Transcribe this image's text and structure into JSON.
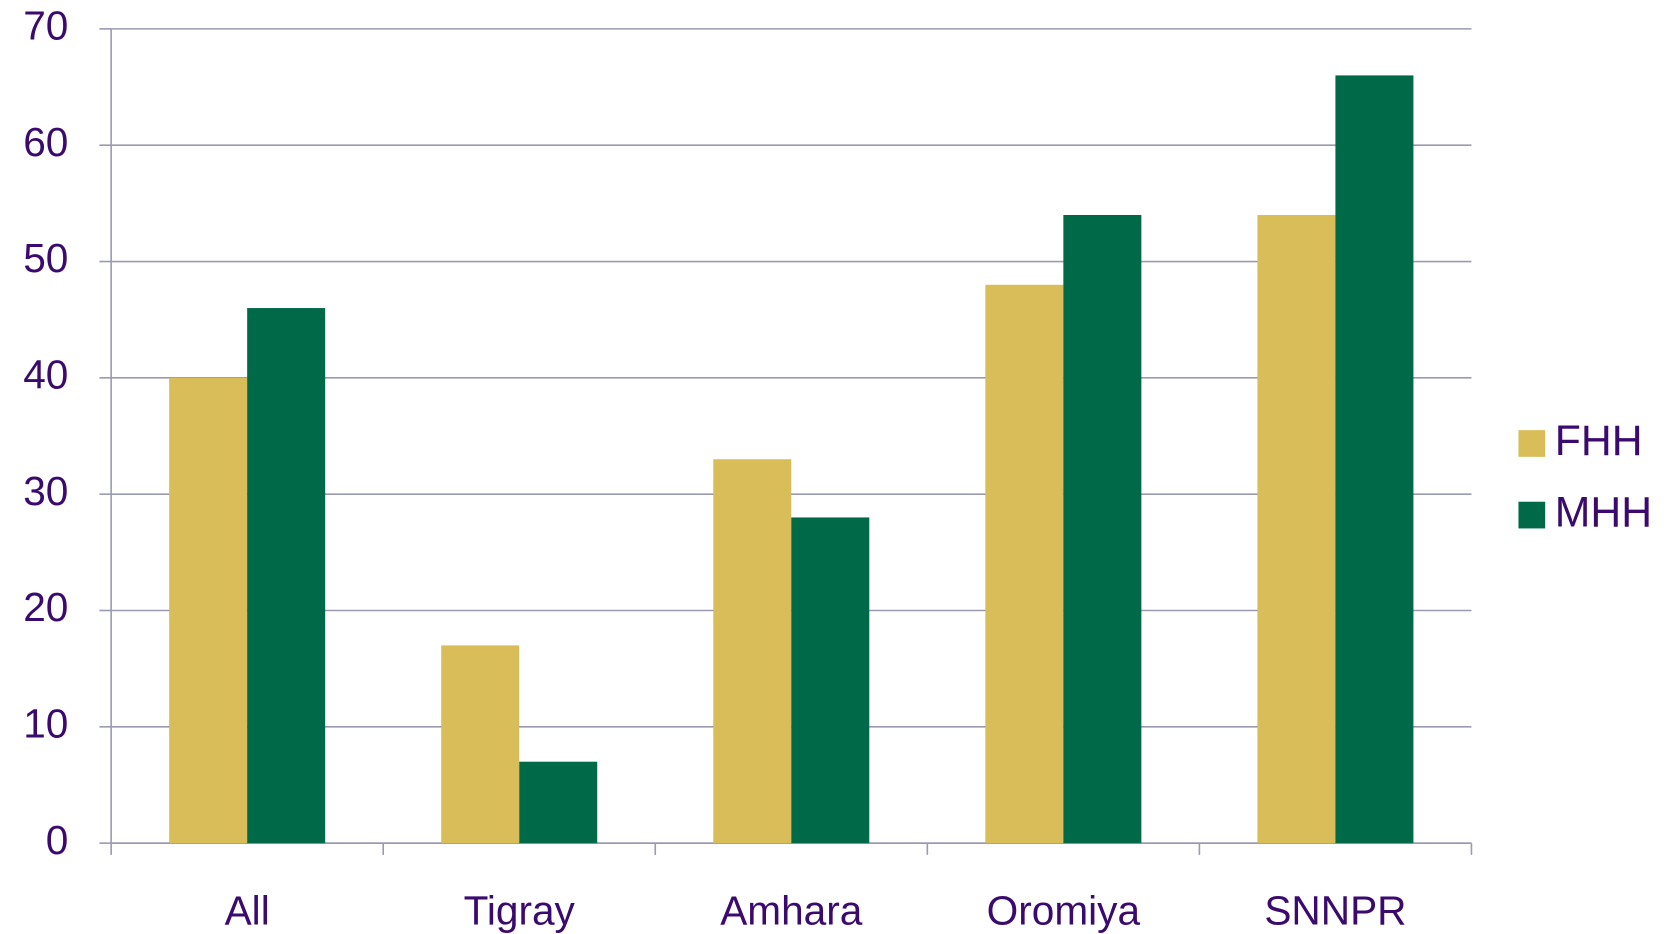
{
  "chart_data": {
    "type": "bar",
    "categories": [
      "All",
      "Tigray",
      "Amhara",
      "Oromiya",
      "SNNPR"
    ],
    "series": [
      {
        "name": "FHH",
        "color": "#d8bd58",
        "values": [
          40,
          17,
          33,
          48,
          54
        ]
      },
      {
        "name": "MHH",
        "color": "#006a48",
        "values": [
          46,
          7,
          28,
          54,
          66
        ]
      }
    ],
    "ylim": [
      0,
      70
    ],
    "yticks": [
      0,
      10,
      20,
      30,
      40,
      50,
      60,
      70
    ],
    "grid": true,
    "legend": "right"
  }
}
